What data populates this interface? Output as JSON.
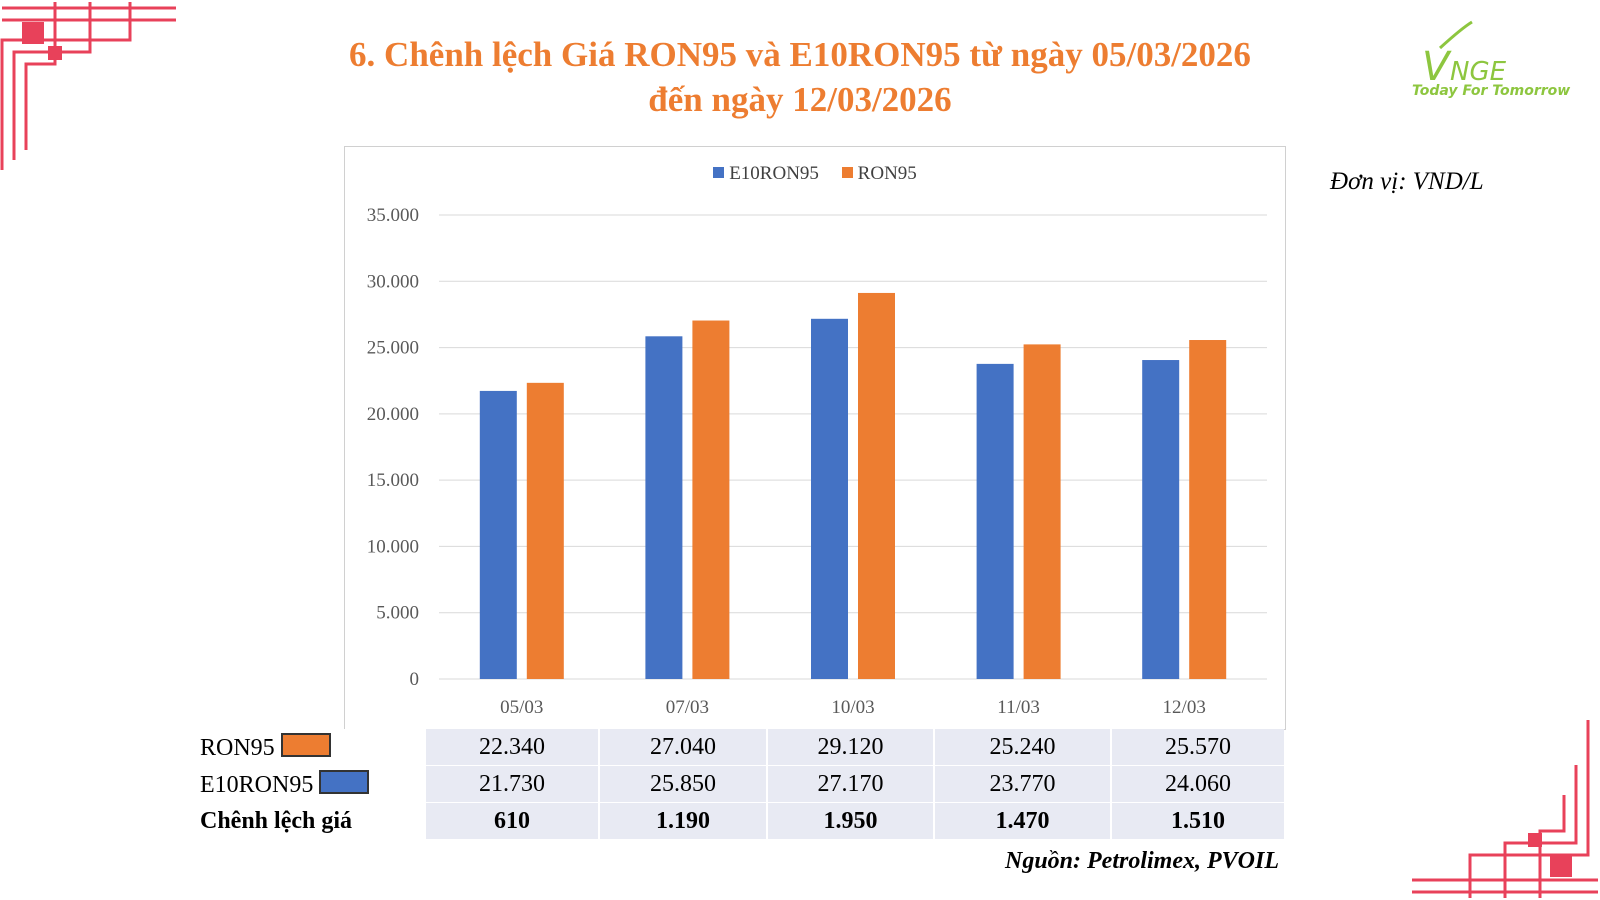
{
  "title_line1": "6. Chênh lệch Giá RON95 và E10RON95 từ ngày 05/03/2026",
  "title_line2": "đến ngày 12/03/2026",
  "unit_label": "Đơn vị: VND/L",
  "source_label": "Nguồn: Petrolimex, PVOIL",
  "logo": {
    "text_v": "V",
    "text_nge": "NGE",
    "tagline": "Today For Tomorrow",
    "color": "#8DC63F"
  },
  "colors": {
    "accent": "#ED7D31",
    "blue": "#4472C4",
    "orange": "#ED7D31",
    "table_bg": "#E8EAF3",
    "decor": "#E8415A"
  },
  "chart_data": {
    "type": "bar",
    "categories": [
      "05/03",
      "07/03",
      "10/03",
      "11/03",
      "12/03"
    ],
    "series": [
      {
        "name": "E10RON95",
        "color": "#4472C4",
        "values": [
          21730,
          25850,
          27170,
          23770,
          24060
        ]
      },
      {
        "name": "RON95",
        "color": "#ED7D31",
        "values": [
          22340,
          27040,
          29120,
          25240,
          25570
        ]
      }
    ],
    "ylim": [
      0,
      35000
    ],
    "yticks": [
      "0",
      "5.000",
      "10.000",
      "15.000",
      "20.000",
      "25.000",
      "30.000",
      "35.000"
    ],
    "grid": true,
    "legend": "top-center"
  },
  "table": {
    "rows": [
      {
        "label": "RON95",
        "values": [
          "22.340",
          "27.040",
          "29.120",
          "25.240",
          "25.570"
        ]
      },
      {
        "label": "E10RON95",
        "values": [
          "21.730",
          "25.850",
          "27.170",
          "23.770",
          "24.060"
        ]
      },
      {
        "label": "Chênh lệch giá",
        "values": [
          "610",
          "1.190",
          "1.950",
          "1.470",
          "1.510"
        ]
      }
    ]
  }
}
